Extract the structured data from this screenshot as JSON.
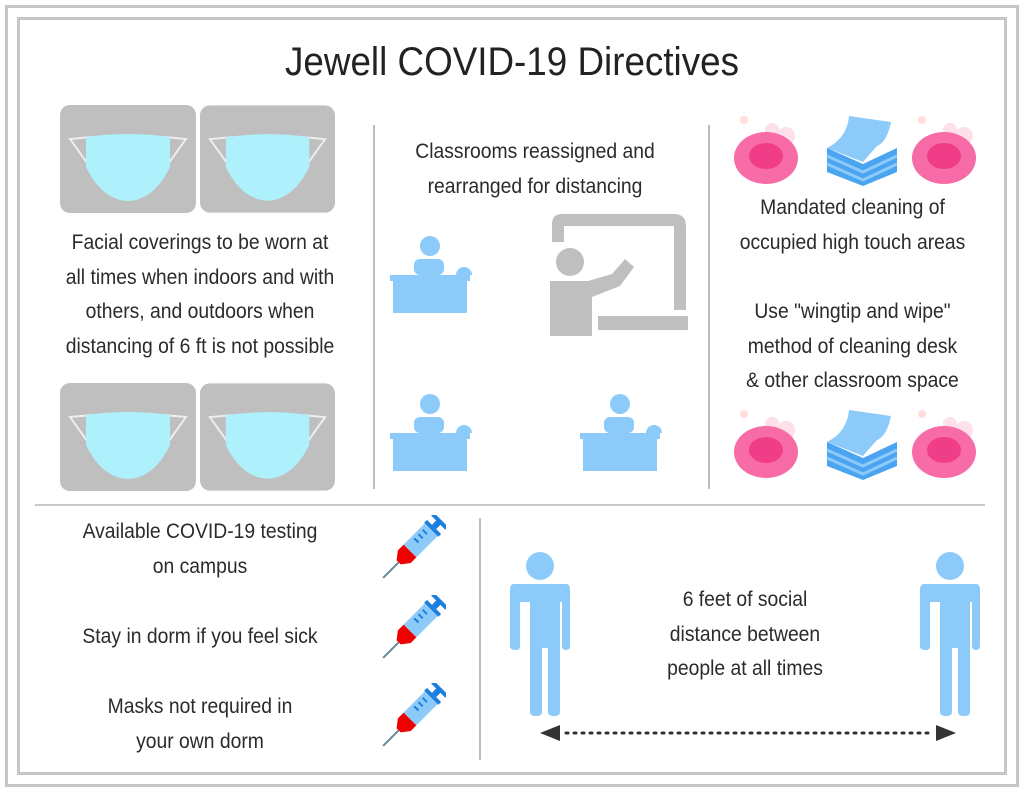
{
  "title": "Jewell COVID-19 Directives",
  "masks": {
    "lines": [
      "Facial coverings to be worn at",
      "all times when indoors and with",
      "others, and outdoors when",
      "distancing of 6 ft is not possible"
    ]
  },
  "classrooms": {
    "lines": [
      "Classrooms reassigned and",
      "rearranged for distancing"
    ]
  },
  "cleaning": {
    "lines": [
      "Mandated cleaning of",
      "occupied high touch areas"
    ],
    "wipe_lines": [
      "Use \"wingtip and wipe\"",
      "method of cleaning desk",
      "& other classroom space"
    ]
  },
  "testing": {
    "lines": [
      "Available COVID-19 testing",
      "on campus"
    ]
  },
  "sick": {
    "lines": [
      "Stay in dorm if you feel sick"
    ]
  },
  "dorm_masks": {
    "lines": [
      "Masks not required in",
      "your own dorm"
    ]
  },
  "distance": {
    "lines": [
      "6 feet of social",
      "distance between",
      "people at all times"
    ]
  },
  "colors": {
    "border": "#c6c6c6",
    "icon_blue": "#8ccbf9",
    "icon_gray": "#bfbfbf",
    "pink": "#f5609f",
    "syringe_red": "#ee0000"
  }
}
